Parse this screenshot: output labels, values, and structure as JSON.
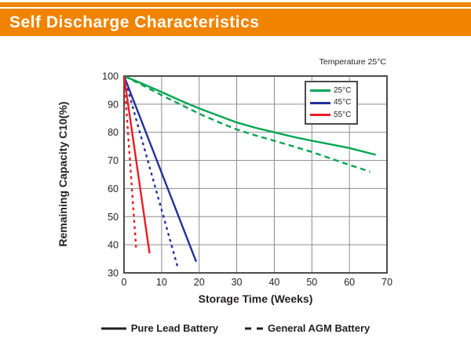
{
  "header": {
    "title": "Self Discharge Characteristics",
    "bar_color": "#F08300"
  },
  "chart_data": {
    "type": "line",
    "title": "Self Discharge Characteristics",
    "annotation": "Temperature 25°C",
    "xlabel": "Storage Time (Weeks)",
    "ylabel": "Remaining Capacity C10(%)",
    "xlim": [
      0,
      70
    ],
    "ylim": [
      30,
      100
    ],
    "x_ticks": [
      0,
      10,
      20,
      30,
      40,
      50,
      60,
      70
    ],
    "y_ticks": [
      30,
      40,
      50,
      60,
      70,
      80,
      90,
      100
    ],
    "grid": true,
    "colors": {
      "grid": "#8c8c8c",
      "axis": "#4d4d4d",
      "text": "#231f20"
    },
    "legend": {
      "position": "top-right",
      "items": [
        {
          "label": "25°C",
          "color": "#00A551"
        },
        {
          "label": "45°C",
          "color": "#2230A0"
        },
        {
          "label": "55°C",
          "color": "#EC1C24"
        }
      ]
    },
    "series": [
      {
        "name": "25°C Pure Lead Battery",
        "color": "#00A551",
        "style": "solid",
        "dash": "",
        "points": [
          [
            0,
            100
          ],
          [
            5,
            97.2
          ],
          [
            10,
            94.3
          ],
          [
            15,
            91.3
          ],
          [
            20,
            88.5
          ],
          [
            25,
            86
          ],
          [
            30,
            83.5
          ],
          [
            35,
            81.6
          ],
          [
            40,
            80
          ],
          [
            45,
            78.4
          ],
          [
            50,
            77
          ],
          [
            55,
            75.7
          ],
          [
            60,
            74.4
          ],
          [
            67,
            72
          ]
        ]
      },
      {
        "name": "25°C General AGM Battery",
        "color": "#00A551",
        "style": "dashed",
        "dash": "7 5",
        "points": [
          [
            0,
            100
          ],
          [
            5,
            96.7
          ],
          [
            10,
            93.2
          ],
          [
            15,
            89.9
          ],
          [
            20,
            86.6
          ],
          [
            25,
            83.7
          ],
          [
            30,
            81
          ],
          [
            35,
            78.9
          ],
          [
            40,
            77
          ],
          [
            45,
            75
          ],
          [
            50,
            73
          ],
          [
            55,
            70.7
          ],
          [
            60,
            68.4
          ],
          [
            65.5,
            66
          ]
        ]
      },
      {
        "name": "45°C Pure Lead Battery",
        "color": "#2230A0",
        "style": "solid",
        "dash": "",
        "points": [
          [
            0,
            100
          ],
          [
            19.2,
            34
          ]
        ]
      },
      {
        "name": "45°C General AGM Battery",
        "color": "#2230A0",
        "style": "dashed",
        "dash": "3.5 4.5",
        "points": [
          [
            0,
            100
          ],
          [
            14.4,
            31.5
          ]
        ]
      },
      {
        "name": "55°C Pure Lead Battery",
        "color": "#EC1C24",
        "style": "solid",
        "dash": "",
        "points": [
          [
            0,
            100
          ],
          [
            6.8,
            37
          ]
        ]
      },
      {
        "name": "55°C General AGM Battery",
        "color": "#EC1C24",
        "style": "dashed",
        "dash": "3.5 4.5",
        "points": [
          [
            0,
            100
          ],
          [
            3.2,
            39
          ]
        ]
      }
    ],
    "style_legend": [
      {
        "label": "Pure Lead Battery",
        "style": "solid"
      },
      {
        "label": "General AGM Battery",
        "style": "dashed"
      }
    ]
  }
}
